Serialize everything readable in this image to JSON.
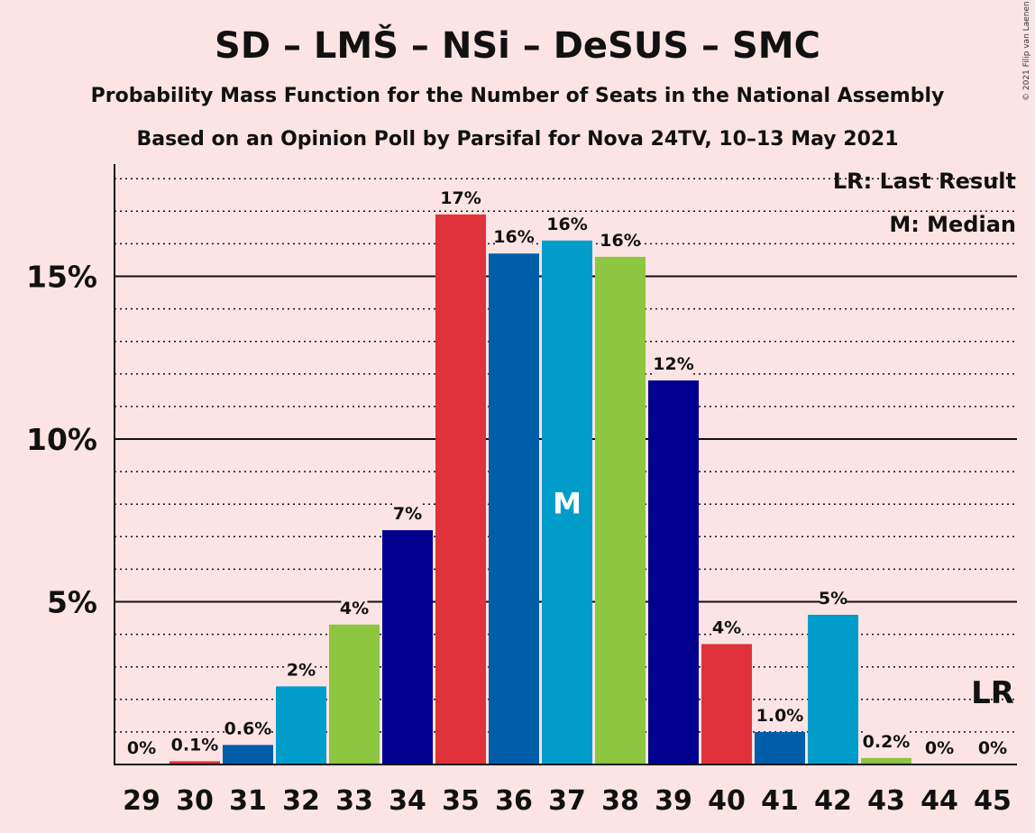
{
  "title": "SD – LMŠ – NSi – DeSUS – SMC",
  "subtitle": "Probability Mass Function for the Number of Seats in the National Assembly",
  "subtitle2": "Based on an Opinion Poll by Parsifal for Nova 24TV, 10–13 May 2021",
  "copyright": "© 2021 Filip van Laenen",
  "legend": {
    "lr": "LR: Last Result",
    "median": "M: Median"
  },
  "median_marker": "M",
  "last_result_marker": "LR",
  "colors": {
    "background": "#fce4e4",
    "red": "#e0323a",
    "blue": "#005daa",
    "cyan": "#009dcb",
    "green": "#8dc641",
    "navy": "#00008f"
  },
  "chart_data": {
    "type": "bar",
    "categories": [
      "29",
      "30",
      "31",
      "32",
      "33",
      "34",
      "35",
      "36",
      "37",
      "38",
      "39",
      "40",
      "41",
      "42",
      "43",
      "44",
      "45"
    ],
    "values": [
      0,
      0.1,
      0.6,
      2.4,
      4.3,
      7.2,
      16.9,
      15.7,
      16.1,
      15.6,
      11.8,
      3.7,
      1.0,
      4.6,
      0.2,
      0,
      0
    ],
    "labels": [
      "0%",
      "0.1%",
      "0.6%",
      "2%",
      "4%",
      "7%",
      "17%",
      "16%",
      "16%",
      "16%",
      "12%",
      "4%",
      "1.0%",
      "5%",
      "0.2%",
      "0%",
      "0%"
    ],
    "bar_colors": [
      "red",
      "red",
      "blue",
      "cyan",
      "green",
      "navy",
      "red",
      "blue",
      "cyan",
      "green",
      "navy",
      "red",
      "blue",
      "cyan",
      "green",
      "navy",
      "red"
    ],
    "median_category": "37",
    "last_result_category": "45",
    "yticks": [
      5,
      10,
      15
    ],
    "ytick_labels": [
      "5%",
      "10%",
      "15%"
    ],
    "ylim": [
      0,
      18.5
    ],
    "grid": "solid lines at labeled ticks, dotted lines every 1%"
  }
}
